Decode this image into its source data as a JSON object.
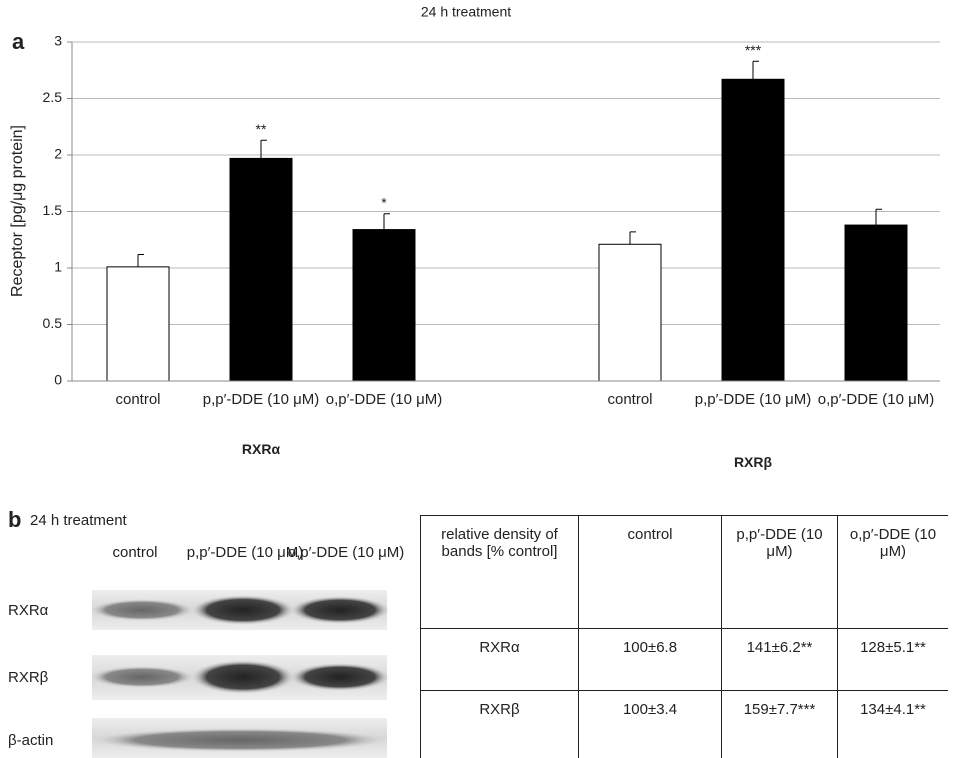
{
  "panel_a": {
    "label": "a"
  },
  "chart_data": {
    "type": "bar",
    "title": "24 h treatment",
    "y_label": "Receptor [pg/μg protein]",
    "groups": [
      "RXRα",
      "RXRβ"
    ],
    "categories": [
      "control",
      "p,p′-DDE (10 μM)",
      "o,p′-DDE (10 μM)",
      "control",
      "p,p′-DDE (10 μM)",
      "o,p′-DDE (10 μM)"
    ],
    "values": [
      1.01,
      1.97,
      1.34,
      1.21,
      2.67,
      1.38
    ],
    "errors": [
      0.11,
      0.16,
      0.14,
      0.11,
      0.16,
      0.14
    ],
    "significance": [
      null,
      "**",
      "*",
      null,
      "***",
      null
    ],
    "colors": [
      "#ffffff",
      "#000000",
      "#000000",
      "#ffffff",
      "#000000",
      "#000000"
    ],
    "ylim": [
      0,
      3
    ],
    "yticks": [
      0,
      0.5,
      1,
      1.5,
      2,
      2.5,
      3
    ],
    "grid": true
  },
  "panel_b": {
    "label": "b",
    "title": "24 h treatment",
    "lanes": [
      "control",
      "p,p′-DDE (10 μM)",
      "o,p′-DDE (10 μM)"
    ],
    "rows": [
      "RXRα",
      "RXRβ",
      "β-actin"
    ]
  },
  "table": {
    "header": [
      "relative density of bands [% control]",
      "control",
      "p,p′-DDE (10 μM)",
      "o,p′-DDE (10 μM)"
    ],
    "rows": [
      [
        "RXRα",
        "100±6.8",
        "141±6.2**",
        "128±5.1**"
      ],
      [
        "RXRβ",
        "100±3.4",
        "159±7.7***",
        "134±4.1**"
      ]
    ]
  }
}
